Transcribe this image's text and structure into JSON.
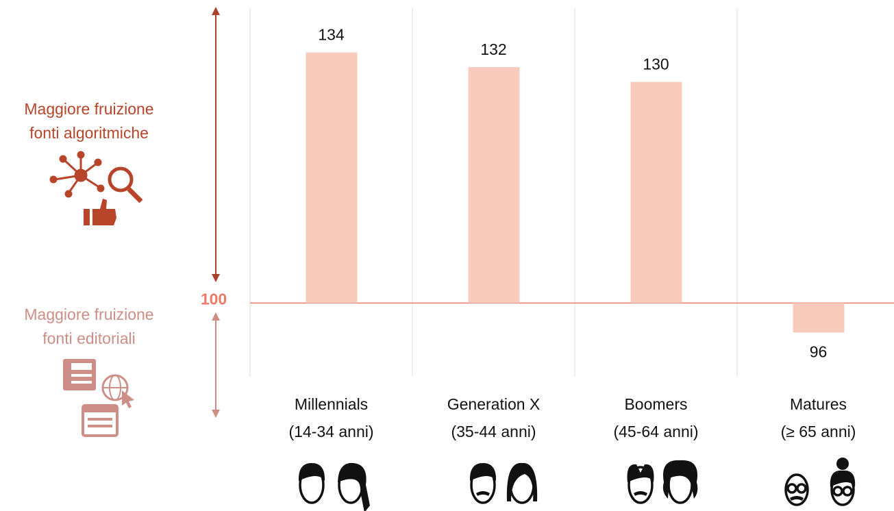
{
  "chart_data": {
    "type": "bar",
    "categories": [
      "Millennials",
      "Generation X",
      "Boomers",
      "Matures"
    ],
    "category_notes": [
      "(14-34 anni)",
      "(35-44 anni)",
      "(45-64 anni)",
      "(≥ 65 anni)"
    ],
    "values": [
      134,
      132,
      130,
      96
    ],
    "color": "#f8cbbd",
    "baseline": 100,
    "baseline_color": "#f07a68",
    "ylim": [
      90,
      140
    ],
    "yticks": [
      100
    ],
    "annotations": [
      {
        "lines": [
          "Maggiore fruizione",
          "fonti algoritmiche"
        ],
        "color": "#b8442a"
      },
      {
        "lines": [
          "Maggiore fruizione",
          "fonti editoriali"
        ],
        "color": "#cc8e86"
      }
    ]
  }
}
